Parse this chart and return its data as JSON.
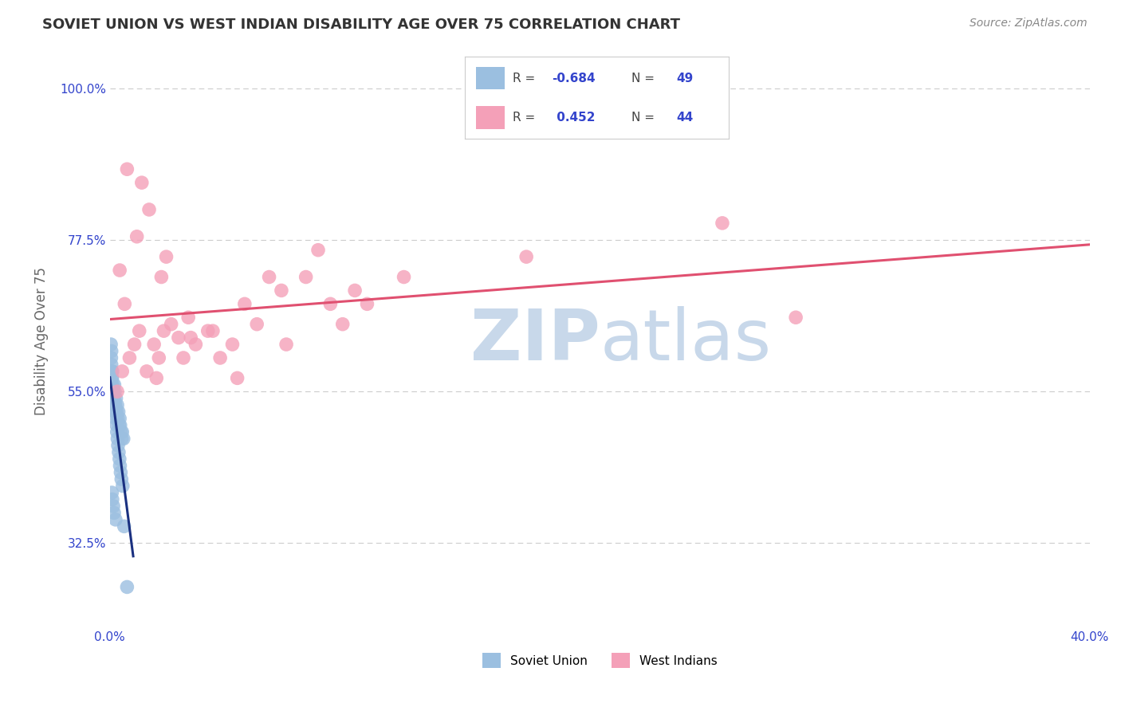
{
  "title": "SOVIET UNION VS WEST INDIAN DISABILITY AGE OVER 75 CORRELATION CHART",
  "source_text": "Source: ZipAtlas.com",
  "ylabel": "Disability Age Over 75",
  "xlim": [
    0.0,
    40.0
  ],
  "ylim": [
    20.0,
    105.0
  ],
  "yticks": [
    32.5,
    55.0,
    77.5,
    100.0
  ],
  "yticklabels": [
    "32.5%",
    "55.0%",
    "77.5%",
    "100.0%"
  ],
  "xtick_left": 0.0,
  "xtick_right": 40.0,
  "soviet_R": -0.684,
  "soviet_N": 49,
  "west_indian_R": 0.452,
  "west_indian_N": 44,
  "soviet_color": "#9bbfe0",
  "west_indian_color": "#f4a0b8",
  "soviet_line_color": "#1a3080",
  "west_indian_line_color": "#e05070",
  "background_color": "#ffffff",
  "grid_color": "#cccccc",
  "watermark_color": "#c8d8ea",
  "legend_R_color": "#3344cc",
  "title_color": "#333333",
  "title_fontsize": 13,
  "axis_label_color": "#666666",
  "tick_color": "#3344cc",
  "source_color": "#888888",
  "soviet_x": [
    0.05,
    0.08,
    0.1,
    0.12,
    0.15,
    0.18,
    0.2,
    0.22,
    0.25,
    0.28,
    0.3,
    0.32,
    0.35,
    0.38,
    0.4,
    0.42,
    0.45,
    0.48,
    0.5,
    0.55,
    0.05,
    0.06,
    0.07,
    0.09,
    0.11,
    0.13,
    0.16,
    0.19,
    0.21,
    0.24,
    0.27,
    0.29,
    0.31,
    0.33,
    0.36,
    0.39,
    0.41,
    0.44,
    0.47,
    0.52,
    0.04,
    0.06,
    0.08,
    0.1,
    0.14,
    0.17,
    0.23,
    0.58,
    0.7
  ],
  "soviet_y": [
    56,
    57,
    58,
    55,
    54,
    56,
    55,
    53,
    54,
    52,
    53,
    51,
    52,
    50,
    51,
    50,
    49,
    48,
    49,
    48,
    60,
    59,
    58,
    57,
    56,
    55,
    54,
    53,
    52,
    51,
    50,
    49,
    48,
    47,
    46,
    45,
    44,
    43,
    42,
    41,
    62,
    61,
    40,
    39,
    38,
    37,
    36,
    35,
    26
  ],
  "west_indian_x": [
    0.3,
    0.5,
    0.8,
    1.0,
    1.2,
    1.5,
    1.8,
    2.0,
    2.2,
    2.5,
    2.8,
    3.0,
    3.5,
    4.0,
    4.5,
    5.0,
    6.0,
    7.0,
    8.0,
    9.0,
    10.0,
    12.0,
    0.6,
    1.1,
    1.6,
    2.1,
    3.2,
    4.2,
    5.5,
    6.5,
    8.5,
    10.5,
    0.4,
    1.3,
    2.3,
    3.3,
    5.2,
    7.2,
    9.5,
    17.0,
    25.0,
    28.0,
    0.7,
    1.9
  ],
  "west_indian_y": [
    55,
    58,
    60,
    62,
    64,
    58,
    62,
    60,
    64,
    65,
    63,
    60,
    62,
    64,
    60,
    62,
    65,
    70,
    72,
    68,
    70,
    72,
    68,
    78,
    82,
    72,
    66,
    64,
    68,
    72,
    76,
    68,
    73,
    86,
    75,
    63,
    57,
    62,
    65,
    75,
    80,
    66,
    88,
    57
  ],
  "west_indian_line_x": [
    0.0,
    40.0
  ],
  "soviet_line_x": [
    0.0,
    1.0
  ]
}
